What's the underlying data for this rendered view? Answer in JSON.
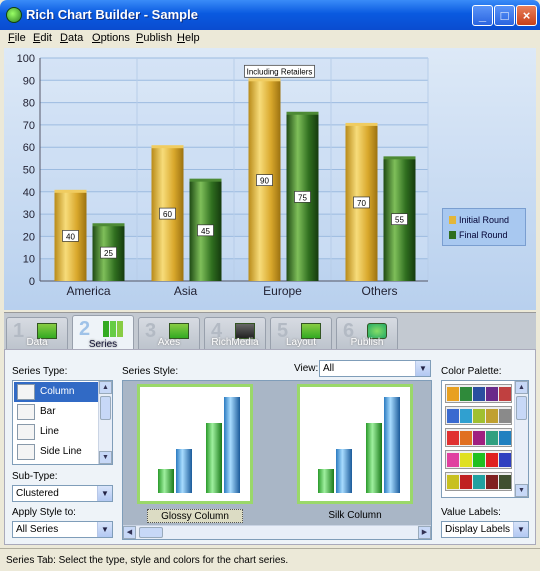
{
  "window": {
    "title": "Rich Chart Builder - Sample",
    "minimize": "_",
    "maximize": "□",
    "close": "×"
  },
  "menu": [
    "File",
    "Edit",
    "Data",
    "Options",
    "Publish",
    "Help"
  ],
  "chart_data": {
    "type": "bar",
    "categories": [
      "America",
      "Asia",
      "Europe",
      "Others"
    ],
    "series": [
      {
        "name": "Initial Round",
        "values": [
          40,
          60,
          90,
          70
        ],
        "color": "#e3b63a"
      },
      {
        "name": "Final Round",
        "values": [
          25,
          45,
          75,
          55
        ],
        "color": "#2f6e1f"
      }
    ],
    "ylim": [
      0,
      100
    ],
    "yticks": [
      0,
      10,
      20,
      30,
      40,
      50,
      60,
      70,
      80,
      90,
      100
    ],
    "annotation": {
      "text": "Including Retailers",
      "category": "Europe"
    },
    "grid": true,
    "legend_position": "right"
  },
  "tabs": [
    {
      "num": "1",
      "label": "Data"
    },
    {
      "num": "2",
      "label": "Series"
    },
    {
      "num": "3",
      "label": "Axes"
    },
    {
      "num": "4",
      "label": "RichMedia"
    },
    {
      "num": "5",
      "label": "Layout"
    },
    {
      "num": "6",
      "label": "Publish"
    }
  ],
  "active_tab": "Series",
  "series_panel": {
    "series_type_label": "Series Type:",
    "series_types": [
      "Column",
      "Bar",
      "Line",
      "Side Line"
    ],
    "selected_type": "Column",
    "subtype_label": "Sub-Type:",
    "subtype_value": "Clustered",
    "apply_label": "Apply Style to:",
    "apply_value": "All Series",
    "style_label": "Series Style:",
    "view_label": "View:",
    "view_value": "All",
    "styles": [
      "Glossy Column",
      "Silk Column"
    ],
    "selected_style": "Glossy Column",
    "palette_label": "Color Palette:",
    "palettes": [
      [
        "#e8a020",
        "#2f8a3a",
        "#2a4fa0",
        "#6a2a8a",
        "#c04040"
      ],
      [
        "#3a6ad0",
        "#30a0d0",
        "#a0c030",
        "#c0a030",
        "#8a8a8a"
      ],
      [
        "#e03030",
        "#e07020",
        "#a02080",
        "#30a080",
        "#2080c0"
      ],
      [
        "#e040a0",
        "#e0e020",
        "#20c020",
        "#e02020",
        "#3040c0"
      ],
      [
        "#c8c020",
        "#c02020",
        "#20a0a0",
        "#802020",
        "#405030"
      ]
    ],
    "value_labels_label": "Value Labels:",
    "value_labels_value": "Display Labels"
  },
  "status": "Series Tab: Select the type, style and colors for the chart series."
}
